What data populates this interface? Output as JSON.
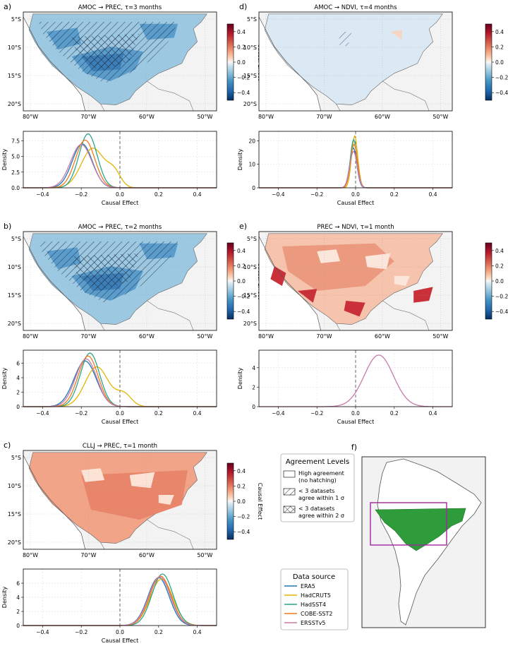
{
  "chart_data": {
    "type": "figure",
    "panels": [
      {
        "letter": "a)",
        "type": "map",
        "title_pre": "AMOC",
        "title_post": "PREC, τ=3 months",
        "fill": "blue",
        "hatch": "heavy"
      },
      {
        "letter": "",
        "type": "density",
        "xlabel": "Causal Effect",
        "ylabel": "Density",
        "xlim": [
          -0.5,
          0.5
        ],
        "ylim": [
          0,
          9
        ],
        "yticks": [
          "0.0",
          "2.5",
          "5.0",
          "7.5"
        ],
        "ytick_values": [
          0,
          2.5,
          5,
          7.5
        ],
        "series": [
          {
            "source": "ERA5",
            "mean": -0.195,
            "sd": 0.052,
            "peak": 7.0
          },
          {
            "source": "HadCRUT5",
            "mean": -0.14,
            "sd": 0.06,
            "peak": 6.3,
            "shoulder": {
              "mean": -0.03,
              "sd": 0.035,
              "amp": 2.2
            }
          },
          {
            "source": "HadSST4",
            "mean": -0.165,
            "sd": 0.047,
            "peak": 8.6
          },
          {
            "source": "COBE-SST2",
            "mean": -0.18,
            "sd": 0.05,
            "peak": 7.6
          },
          {
            "source": "ERSSTv5",
            "mean": -0.2,
            "sd": 0.055,
            "peak": 6.9
          }
        ]
      },
      {
        "letter": "b)",
        "type": "map",
        "title_pre": "AMOC",
        "title_post": "PREC, τ=2 months",
        "fill": "blue",
        "hatch": "heavy"
      },
      {
        "letter": "",
        "type": "density",
        "xlabel": "Causal Effect",
        "ylabel": "Density",
        "xlim": [
          -0.5,
          0.5
        ],
        "ylim": [
          0,
          7.8
        ],
        "yticks": [
          "0",
          "2",
          "4",
          "6"
        ],
        "ytick_values": [
          0,
          2,
          4,
          6
        ],
        "series": [
          {
            "source": "ERA5",
            "mean": -0.18,
            "sd": 0.058,
            "peak": 6.3
          },
          {
            "source": "HadCRUT5",
            "mean": -0.12,
            "sd": 0.06,
            "peak": 5.5,
            "shoulder": {
              "mean": 0.02,
              "sd": 0.04,
              "amp": 1.7
            }
          },
          {
            "source": "HadSST4",
            "mean": -0.155,
            "sd": 0.05,
            "peak": 7.4
          },
          {
            "source": "COBE-SST2",
            "mean": -0.165,
            "sd": 0.052,
            "peak": 7.0
          },
          {
            "source": "ERSSTv5",
            "mean": -0.175,
            "sd": 0.055,
            "peak": 6.6
          }
        ]
      },
      {
        "letter": "c)",
        "type": "map",
        "title_pre": "CLLJ",
        "title_post": "PREC, τ=1 month",
        "fill": "red",
        "hatch": "none"
      },
      {
        "letter": "",
        "type": "density",
        "xlabel": "Causal Effect",
        "ylabel": "Density",
        "xlim": [
          -0.5,
          0.5
        ],
        "ylim": [
          0,
          8
        ],
        "yticks": [
          "0",
          "2",
          "4",
          "6"
        ],
        "ytick_values": [
          0,
          2,
          4,
          6
        ],
        "series": [
          {
            "source": "ERA5",
            "mean": 0.2,
            "sd": 0.055,
            "peak": 6.8
          },
          {
            "source": "HadCRUT5",
            "mean": 0.215,
            "sd": 0.058,
            "peak": 6.6
          },
          {
            "source": "HadSST4",
            "mean": 0.22,
            "sd": 0.054,
            "peak": 7.3
          },
          {
            "source": "COBE-SST2",
            "mean": 0.21,
            "sd": 0.055,
            "peak": 7.0
          },
          {
            "source": "ERSSTv5",
            "mean": 0.205,
            "sd": 0.056,
            "peak": 6.9
          }
        ]
      },
      {
        "letter": "d)",
        "type": "map",
        "title_pre": "AMOC",
        "title_post": "NDVI, τ=4 months",
        "fill": "pale",
        "hatch": "light"
      },
      {
        "letter": "",
        "type": "density",
        "xlabel": "Causal Effect",
        "ylabel": "Density",
        "xlim": [
          -0.5,
          0.5
        ],
        "ylim": [
          0,
          24
        ],
        "yticks": [
          "0",
          "10",
          "20"
        ],
        "ytick_values": [
          0,
          10,
          20
        ],
        "series": [
          {
            "source": "ERA5",
            "mean": -0.012,
            "sd": 0.018,
            "peak": 17.0
          },
          {
            "source": "HadCRUT5",
            "mean": -0.005,
            "sd": 0.016,
            "peak": 22.0
          },
          {
            "source": "HadSST4",
            "mean": -0.01,
            "sd": 0.017,
            "peak": 20.5
          },
          {
            "source": "COBE-SST2",
            "mean": -0.008,
            "sd": 0.018,
            "peak": 18.5
          },
          {
            "source": "ERSSTv5",
            "mean": -0.011,
            "sd": 0.019,
            "peak": 15.5
          }
        ]
      },
      {
        "letter": "e)",
        "type": "map",
        "title_pre": "PREC",
        "title_post": "NDVI, τ=1 month",
        "fill": "redpatchy",
        "hatch": "none"
      },
      {
        "letter": "",
        "type": "density",
        "xlabel": "Causal Effect",
        "ylabel": "Density",
        "xlim": [
          -0.5,
          0.5
        ],
        "ylim": [
          0,
          5.8
        ],
        "yticks": [
          "0",
          "2",
          "4"
        ],
        "ytick_values": [
          0,
          2,
          4
        ],
        "series": [
          {
            "source": "ERSSTv5",
            "mean": 0.12,
            "sd": 0.075,
            "peak": 5.3
          }
        ]
      }
    ],
    "map_xticks": [
      "80°W",
      "70°W",
      "60°W",
      "50°W"
    ],
    "map_yticks": [
      "5°S",
      "10°S",
      "15°S",
      "20°S"
    ],
    "colorbar": {
      "label": "Causal Effect",
      "ticks": [
        "0.4",
        "0.2",
        "0.0",
        "−0.2",
        "−0.4"
      ],
      "tick_values": [
        0.4,
        0.2,
        0.0,
        -0.2,
        -0.4
      ],
      "range": [
        -0.5,
        0.5
      ]
    },
    "density_xticks": [
      "−0.4",
      "−0.2",
      "0.0",
      "0.2",
      "0.4"
    ],
    "density_xtick_values": [
      -0.4,
      -0.2,
      0,
      0.2,
      0.4
    ],
    "agreement_legend": {
      "title": "Agreement Levels",
      "items": [
        {
          "lines": [
            "High agreement",
            "(no hatching)"
          ],
          "hatch": "none"
        },
        {
          "lines": [
            "< 3 datasets",
            "agree within 1 σ"
          ],
          "hatch": "single"
        },
        {
          "lines": [
            "< 3 datasets",
            "agree within 2 σ"
          ],
          "hatch": "cross"
        }
      ]
    },
    "source_legend": {
      "title": "Data source",
      "items": [
        {
          "name": "ERA5",
          "color": "#1f77b4"
        },
        {
          "name": "HadCRUT5",
          "color": "#e3b505"
        },
        {
          "name": "HadSST4",
          "color": "#2ca58d"
        },
        {
          "name": "COBE-SST2",
          "color": "#f0791f"
        },
        {
          "name": "ERSSTv5",
          "color": "#c77ba9"
        }
      ]
    },
    "panel_f": {
      "letter": "f)"
    }
  }
}
